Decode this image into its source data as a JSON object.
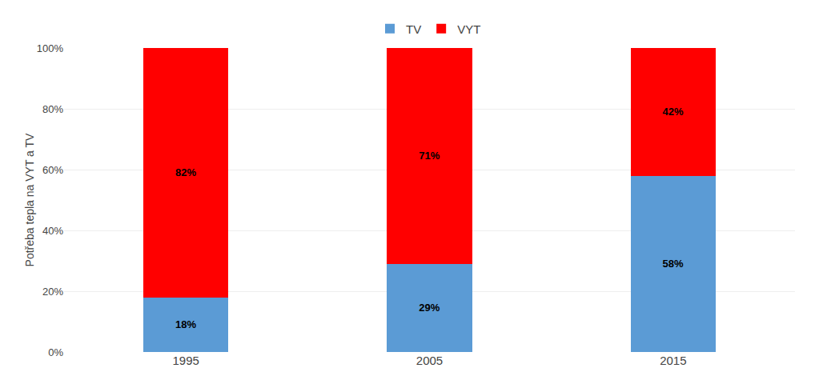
{
  "chart_data": {
    "type": "bar",
    "stacked": true,
    "categories": [
      "1995",
      "2005",
      "2015"
    ],
    "series": [
      {
        "name": "TV",
        "color": "#5B9BD5",
        "values": [
          18,
          29,
          58
        ],
        "value_labels": [
          "18%",
          "29%",
          "58%"
        ]
      },
      {
        "name": "VYT",
        "color": "#FF0000",
        "values": [
          82,
          71,
          42
        ],
        "value_labels": [
          "82%",
          "71%",
          "42%"
        ]
      }
    ],
    "ylabel": "Potřeba tepla na VYT a TV",
    "ylim": [
      0,
      100
    ],
    "yticks": [
      {
        "value": 0,
        "label": "0%"
      },
      {
        "value": 20,
        "label": "20%"
      },
      {
        "value": 40,
        "label": "40%"
      },
      {
        "value": 60,
        "label": "60%"
      },
      {
        "value": 80,
        "label": "80%"
      },
      {
        "value": 100,
        "label": "100%"
      }
    ],
    "grid": true,
    "legend": "top",
    "data_labels": true
  }
}
